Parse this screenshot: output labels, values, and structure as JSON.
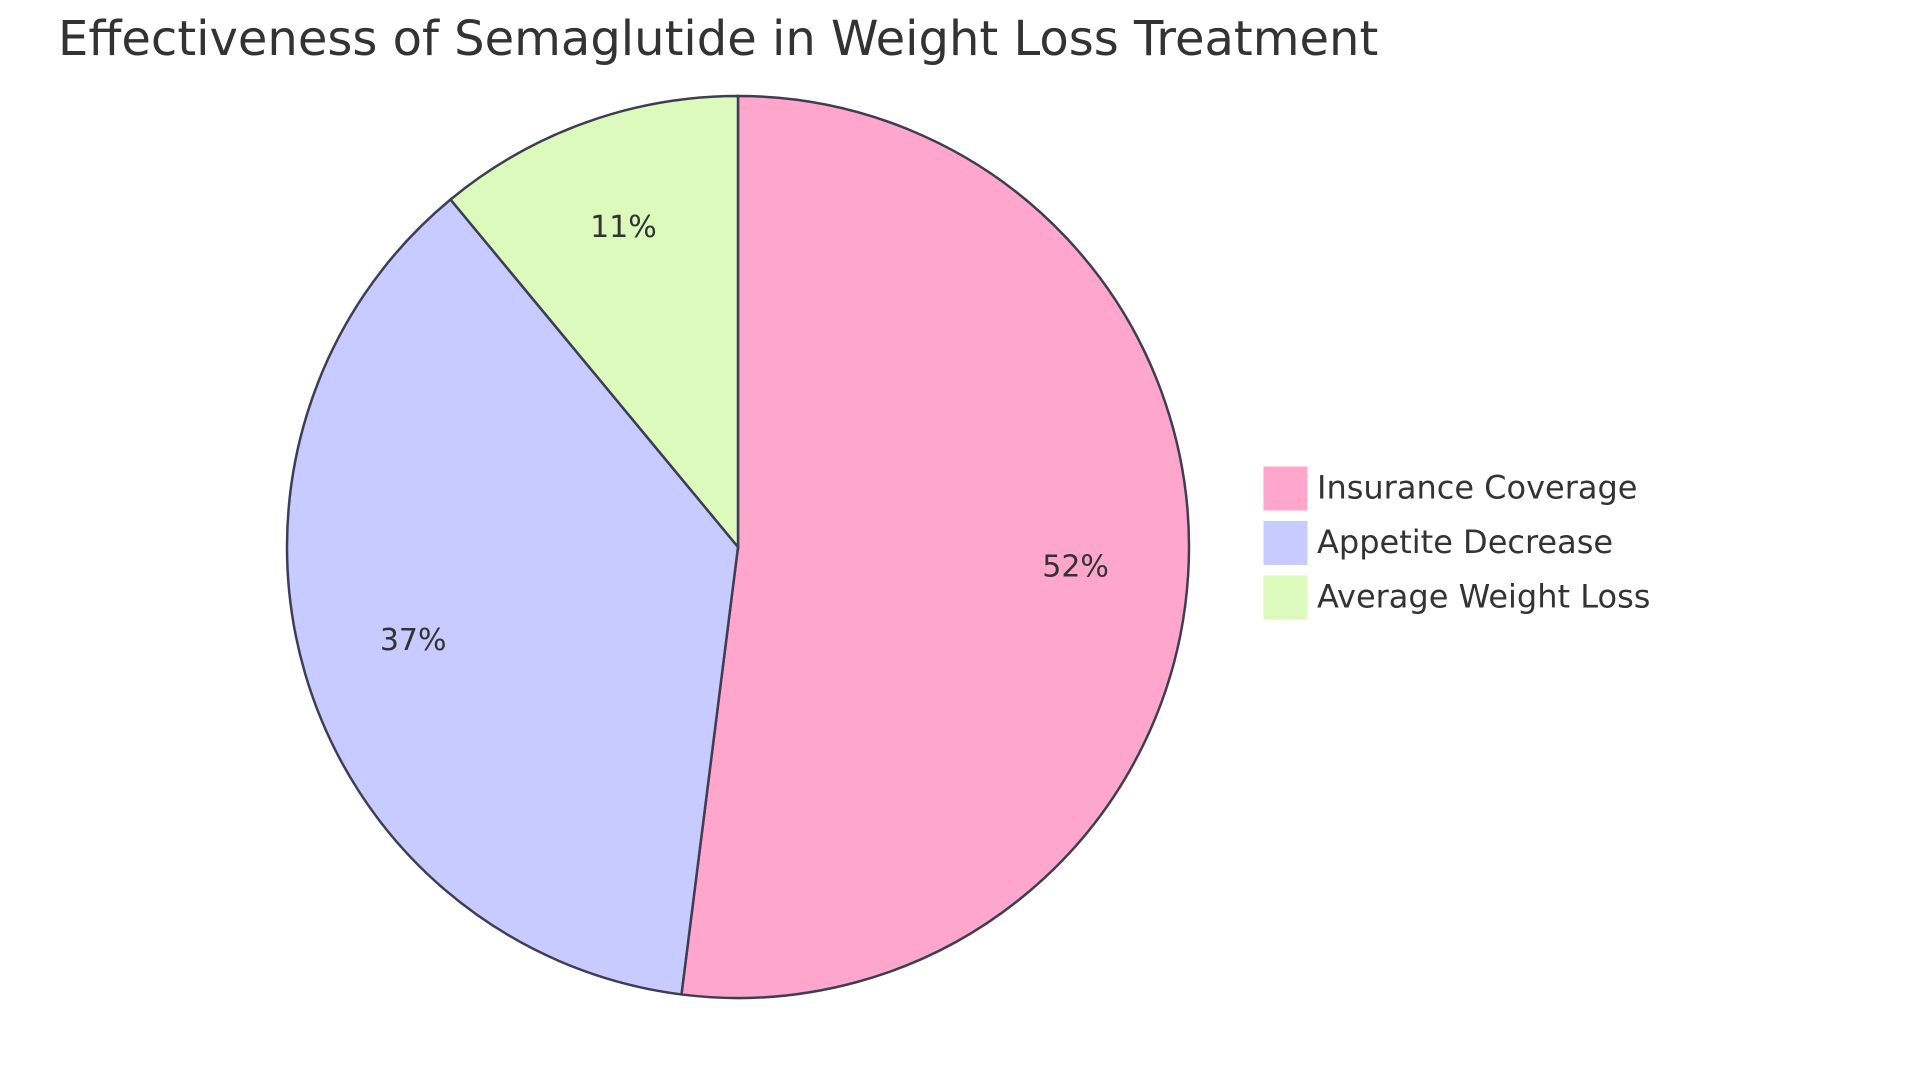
{
  "chart_data": {
    "type": "pie",
    "title": "Effectiveness of Semaglutide in Weight Loss Treatment",
    "categories": [
      "Insurance Coverage",
      "Appetite Decrease",
      "Average Weight Loss"
    ],
    "values": [
      52,
      37,
      11
    ],
    "value_labels": [
      "52%",
      "37%",
      "11%"
    ],
    "colors": [
      "#ffa6cd",
      "#c8cbff",
      "#dcfabb"
    ],
    "legend": "right"
  }
}
